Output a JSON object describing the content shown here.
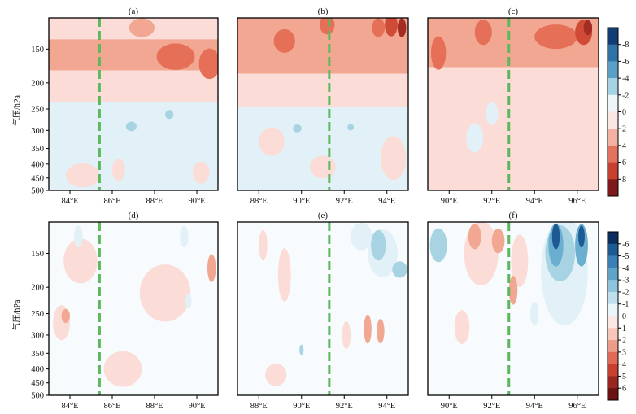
{
  "chart_data": [
    {
      "id": "a",
      "type": "heatmap",
      "title": "(a)",
      "ylabel": "气压/hPa",
      "x_ticks": [
        "84°E",
        "86°E",
        "88°E",
        "90°E"
      ],
      "x_tick_values": [
        84,
        86,
        88,
        90
      ],
      "xlim": [
        83,
        91
      ],
      "y_ticks": [
        "150",
        "200",
        "250",
        "300",
        "350",
        "400",
        "450",
        "500"
      ],
      "y_tick_values": [
        150,
        200,
        250,
        300,
        350,
        400,
        450,
        500
      ],
      "ylim": [
        115,
        500
      ],
      "y_scale": "log",
      "y_inverted": true,
      "dashed_line_x": 85.4,
      "bands": [
        {
          "from": 115,
          "to": 138,
          "value": 1
        },
        {
          "from": 138,
          "to": 180,
          "value": 2
        },
        {
          "from": 180,
          "to": 235,
          "value": 1
        },
        {
          "from": 235,
          "to": 500,
          "value": -1
        }
      ],
      "blobs": [
        {
          "x": 89.0,
          "p": 160,
          "rx": 0.9,
          "ry_hpa": 18,
          "value": 3
        },
        {
          "x": 90.6,
          "p": 170,
          "rx": 0.5,
          "ry_hpa": 22,
          "value": 3
        },
        {
          "x": 87.4,
          "p": 125,
          "rx": 0.6,
          "ry_hpa": 10,
          "value": 2
        },
        {
          "x": 86.9,
          "p": 290,
          "rx": 0.25,
          "ry_hpa": 12,
          "value": -2
        },
        {
          "x": 88.7,
          "p": 262,
          "rx": 0.2,
          "ry_hpa": 10,
          "value": -2
        },
        {
          "x": 84.6,
          "p": 440,
          "rx": 0.8,
          "ry_hpa": 45,
          "value": 1
        },
        {
          "x": 86.3,
          "p": 420,
          "rx": 0.3,
          "ry_hpa": 40,
          "value": 1
        },
        {
          "x": 90.2,
          "p": 430,
          "rx": 0.4,
          "ry_hpa": 40,
          "value": 1
        }
      ]
    },
    {
      "id": "b",
      "type": "heatmap",
      "title": "(b)",
      "x_ticks": [
        "88°E",
        "90°E",
        "92°E",
        "94°E"
      ],
      "x_tick_values": [
        88,
        90,
        92,
        94
      ],
      "xlim": [
        87,
        95
      ],
      "ylim": [
        115,
        500
      ],
      "y_scale": "log",
      "y_inverted": true,
      "dashed_line_x": 91.3,
      "bands": [
        {
          "from": 115,
          "to": 185,
          "value": 2
        },
        {
          "from": 185,
          "to": 245,
          "value": 1
        },
        {
          "from": 245,
          "to": 500,
          "value": -1
        }
      ],
      "blobs": [
        {
          "x": 89.2,
          "p": 140,
          "rx": 0.5,
          "ry_hpa": 14,
          "value": 3
        },
        {
          "x": 91.2,
          "p": 122,
          "rx": 0.35,
          "ry_hpa": 10,
          "value": 3
        },
        {
          "x": 93.6,
          "p": 125,
          "rx": 0.3,
          "ry_hpa": 10,
          "value": 3
        },
        {
          "x": 94.2,
          "p": 122,
          "rx": 0.3,
          "ry_hpa": 12,
          "value": 4
        },
        {
          "x": 94.7,
          "p": 125,
          "rx": 0.2,
          "ry_hpa": 10,
          "value": 5
        },
        {
          "x": 89.8,
          "p": 295,
          "rx": 0.2,
          "ry_hpa": 10,
          "value": -2
        },
        {
          "x": 92.3,
          "p": 292,
          "rx": 0.15,
          "ry_hpa": 8,
          "value": -2
        },
        {
          "x": 88.6,
          "p": 330,
          "rx": 0.6,
          "ry_hpa": 40,
          "value": 1
        },
        {
          "x": 94.3,
          "p": 380,
          "rx": 0.6,
          "ry_hpa": 70,
          "value": 1
        },
        {
          "x": 91.0,
          "p": 410,
          "rx": 0.6,
          "ry_hpa": 40,
          "value": 1
        }
      ]
    },
    {
      "id": "c",
      "type": "heatmap",
      "title": "(c)",
      "x_ticks": [
        "90°E",
        "92°E",
        "94°E",
        "96°E"
      ],
      "x_tick_values": [
        90,
        92,
        94,
        96
      ],
      "xlim": [
        89,
        97
      ],
      "ylim": [
        115,
        500
      ],
      "y_scale": "log",
      "y_inverted": true,
      "dashed_line_x": 92.8,
      "bands": [
        {
          "from": 115,
          "to": 175,
          "value": 2
        },
        {
          "from": 175,
          "to": 500,
          "value": 1
        }
      ],
      "blobs": [
        {
          "x": 89.5,
          "p": 155,
          "rx": 0.35,
          "ry_hpa": 22,
          "value": 3
        },
        {
          "x": 91.6,
          "p": 130,
          "rx": 0.4,
          "ry_hpa": 14,
          "value": 3
        },
        {
          "x": 95.0,
          "p": 135,
          "rx": 1.0,
          "ry_hpa": 14,
          "value": 3
        },
        {
          "x": 96.3,
          "p": 130,
          "rx": 0.4,
          "ry_hpa": 14,
          "value": 4
        },
        {
          "x": 96.5,
          "p": 125,
          "rx": 0.2,
          "ry_hpa": 8,
          "value": 5
        },
        {
          "x": 91.2,
          "p": 320,
          "rx": 0.4,
          "ry_hpa": 40,
          "value": -1
        },
        {
          "x": 92.0,
          "p": 260,
          "rx": 0.3,
          "ry_hpa": 25,
          "value": -1
        }
      ],
      "colorbar": {
        "labels": [
          "-8",
          "-6",
          "-4",
          "-2",
          "0",
          "2",
          "4",
          "6",
          "8"
        ],
        "colors": [
          "#123c73",
          "#2e72a6",
          "#5aa0c6",
          "#a6d3e3",
          "#eef6fa",
          "#fbe6e3",
          "#f4b2a4",
          "#e3735f",
          "#c8402f",
          "#7f1a1a"
        ]
      }
    },
    {
      "id": "d",
      "type": "heatmap",
      "title": "(d)",
      "ylabel": "气压/hPa",
      "x_ticks": [
        "84°E",
        "86°E",
        "88°E",
        "90°E"
      ],
      "x_tick_values": [
        84,
        86,
        88,
        90
      ],
      "xlim": [
        83,
        91
      ],
      "y_ticks": [
        "150",
        "200",
        "250",
        "300",
        "350",
        "400",
        "450",
        "500"
      ],
      "y_tick_values": [
        150,
        200,
        250,
        300,
        350,
        400,
        450,
        500
      ],
      "ylim": [
        115,
        500
      ],
      "y_scale": "log",
      "y_inverted": true,
      "dashed_line_x": 85.4,
      "bands": [
        {
          "from": 115,
          "to": 500,
          "value": 0
        }
      ],
      "blobs": [
        {
          "x": 84.5,
          "p": 160,
          "rx": 0.8,
          "ry_hpa": 30,
          "value": 1
        },
        {
          "x": 88.5,
          "p": 210,
          "rx": 1.2,
          "ry_hpa": 50,
          "value": 1
        },
        {
          "x": 90.7,
          "p": 170,
          "rx": 0.2,
          "ry_hpa": 20,
          "value": 2
        },
        {
          "x": 83.6,
          "p": 270,
          "rx": 0.4,
          "ry_hpa": 40,
          "value": 1
        },
        {
          "x": 83.8,
          "p": 255,
          "rx": 0.2,
          "ry_hpa": 15,
          "value": 2
        },
        {
          "x": 89.6,
          "p": 225,
          "rx": 0.15,
          "ry_hpa": 14,
          "value": -1
        },
        {
          "x": 84.4,
          "p": 130,
          "rx": 0.2,
          "ry_hpa": 12,
          "value": -1
        },
        {
          "x": 89.4,
          "p": 130,
          "rx": 0.2,
          "ry_hpa": 12,
          "value": -1
        },
        {
          "x": 86.5,
          "p": 400,
          "rx": 0.9,
          "ry_hpa": 60,
          "value": 1
        }
      ]
    },
    {
      "id": "e",
      "type": "heatmap",
      "title": "(e)",
      "x_ticks": [
        "88°E",
        "90°E",
        "92°E",
        "94°E"
      ],
      "x_tick_values": [
        88,
        90,
        92,
        94
      ],
      "xlim": [
        87,
        95
      ],
      "ylim": [
        115,
        500
      ],
      "y_scale": "log",
      "y_inverted": true,
      "dashed_line_x": 91.3,
      "bands": [
        {
          "from": 115,
          "to": 500,
          "value": 0
        }
      ],
      "blobs": [
        {
          "x": 88.2,
          "p": 140,
          "rx": 0.2,
          "ry_hpa": 18,
          "value": 1
        },
        {
          "x": 89.2,
          "p": 180,
          "rx": 0.3,
          "ry_hpa": 40,
          "value": 1
        },
        {
          "x": 92.8,
          "p": 130,
          "rx": 0.5,
          "ry_hpa": 15,
          "value": -1
        },
        {
          "x": 93.8,
          "p": 150,
          "rx": 0.7,
          "ry_hpa": 30,
          "value": -1
        },
        {
          "x": 93.6,
          "p": 140,
          "rx": 0.35,
          "ry_hpa": 18,
          "value": -2
        },
        {
          "x": 94.6,
          "p": 172,
          "rx": 0.35,
          "ry_hpa": 12,
          "value": -2
        },
        {
          "x": 92.1,
          "p": 300,
          "rx": 0.2,
          "ry_hpa": 35,
          "value": 1
        },
        {
          "x": 93.1,
          "p": 285,
          "rx": 0.18,
          "ry_hpa": 35,
          "value": 2
        },
        {
          "x": 93.7,
          "p": 290,
          "rx": 0.18,
          "ry_hpa": 30,
          "value": 2
        },
        {
          "x": 90.0,
          "p": 340,
          "rx": 0.1,
          "ry_hpa": 15,
          "value": -2
        },
        {
          "x": 88.8,
          "p": 420,
          "rx": 0.5,
          "ry_hpa": 40,
          "value": 1
        }
      ]
    },
    {
      "id": "f",
      "type": "heatmap",
      "title": "(f)",
      "x_ticks": [
        "90°E",
        "92°E",
        "94°E",
        "96°E"
      ],
      "x_tick_values": [
        90,
        92,
        94,
        96
      ],
      "xlim": [
        89,
        97
      ],
      "ylim": [
        115,
        500
      ],
      "y_scale": "log",
      "y_inverted": true,
      "dashed_line_x": 92.8,
      "bands": [
        {
          "from": 115,
          "to": 500,
          "value": 0
        }
      ],
      "blobs": [
        {
          "x": 89.5,
          "p": 140,
          "rx": 0.4,
          "ry_hpa": 20,
          "value": -2
        },
        {
          "x": 91.5,
          "p": 150,
          "rx": 0.8,
          "ry_hpa": 40,
          "value": 1
        },
        {
          "x": 91.2,
          "p": 130,
          "rx": 0.3,
          "ry_hpa": 14,
          "value": 2
        },
        {
          "x": 92.3,
          "p": 135,
          "rx": 0.3,
          "ry_hpa": 14,
          "value": 2
        },
        {
          "x": 93.3,
          "p": 160,
          "rx": 0.4,
          "ry_hpa": 35,
          "value": 1
        },
        {
          "x": 93.0,
          "p": 205,
          "rx": 0.2,
          "ry_hpa": 25,
          "value": 2
        },
        {
          "x": 95.4,
          "p": 175,
          "rx": 1.1,
          "ry_hpa": 75,
          "value": -1
        },
        {
          "x": 95.2,
          "p": 150,
          "rx": 0.7,
          "ry_hpa": 35,
          "value": -2
        },
        {
          "x": 95.0,
          "p": 140,
          "rx": 0.35,
          "ry_hpa": 25,
          "value": -3
        },
        {
          "x": 96.2,
          "p": 140,
          "rx": 0.3,
          "ry_hpa": 25,
          "value": -3
        },
        {
          "x": 95.0,
          "p": 130,
          "rx": 0.18,
          "ry_hpa": 14,
          "value": -5
        },
        {
          "x": 96.2,
          "p": 130,
          "rx": 0.15,
          "ry_hpa": 12,
          "value": -5
        },
        {
          "x": 90.6,
          "p": 280,
          "rx": 0.35,
          "ry_hpa": 40,
          "value": 1
        },
        {
          "x": 94.0,
          "p": 250,
          "rx": 0.2,
          "ry_hpa": 25,
          "value": -1
        }
      ],
      "colorbar": {
        "labels": [
          "-6",
          "-5",
          "-4",
          "-3",
          "-2",
          "-1",
          "0",
          "1",
          "2",
          "3",
          "4",
          "5",
          "6"
        ],
        "colors": [
          "#0c2e5e",
          "#1d5a94",
          "#3a7fb5",
          "#5fa3c9",
          "#8cc4dc",
          "#bde0ec",
          "#eaf5f9",
          "#fbe8e5",
          "#f6c6bb",
          "#ee9c8a",
          "#e06a55",
          "#c8402f",
          "#9a2622",
          "#6b1313"
        ]
      }
    }
  ]
}
